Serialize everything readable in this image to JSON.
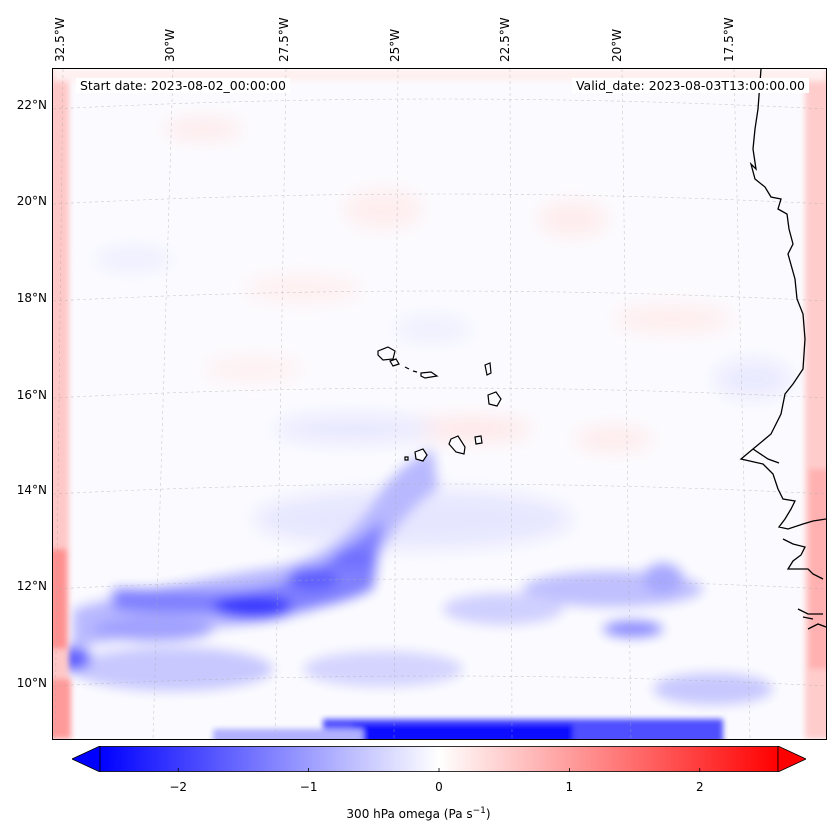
{
  "header": {
    "start_date": "Start date: 2023-08-02_00:00:00",
    "valid_date": "Valid_date: 2023-08-03T13:00:00.00"
  },
  "map": {
    "lon_labels": [
      "32.5°W",
      "30°W",
      "27.5°W",
      "25°W",
      "22.5°W",
      "20°W",
      "17.5°W"
    ],
    "lat_labels": [
      "22°N",
      "20°N",
      "18°N",
      "16°N",
      "14°N",
      "12°N",
      "10°N"
    ],
    "coastline_color": "#000000",
    "field": "300 hPa omega",
    "colormap": "bwr"
  },
  "colorbar": {
    "ticks": [
      "−2",
      "−1",
      "0",
      "1",
      "2"
    ],
    "tick_values": [
      -2,
      -1,
      0,
      1,
      2
    ],
    "range": [
      -2.6,
      2.6
    ],
    "low_color": "#0000ff",
    "mid_color": "#ffffff",
    "high_color": "#ff0000",
    "label_prefix": "300 hPa omega (Pa s",
    "label_exp": "−1",
    "label_suffix": ")"
  }
}
